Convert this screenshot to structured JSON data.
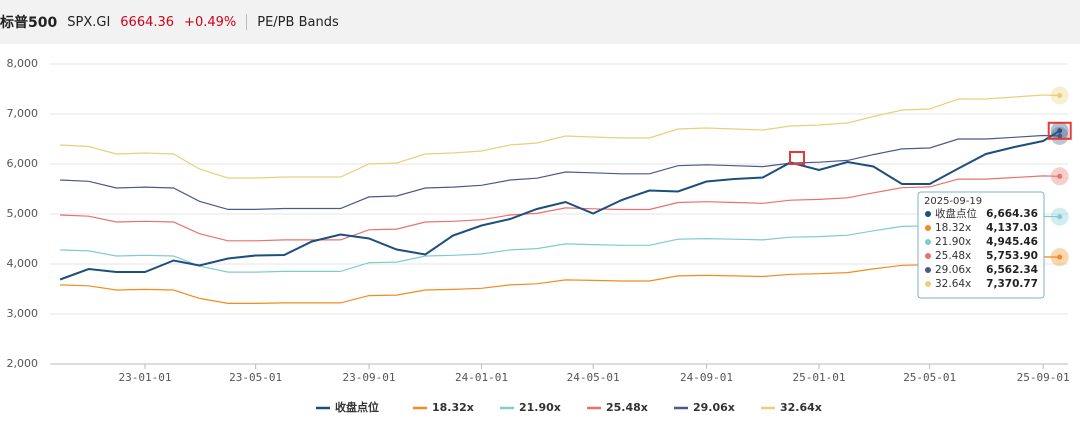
{
  "header": {
    "name": "标普500",
    "code": "SPX.GI",
    "price": "6664.36",
    "change": "+0.49%",
    "tab": "PE/PB Bands"
  },
  "chart_data": {
    "type": "line",
    "x": [
      "2022-10-01",
      "2022-11-01",
      "2022-12-01",
      "2023-01-01",
      "2023-02-01",
      "2023-03-01",
      "2023-04-01",
      "2023-05-01",
      "2023-06-01",
      "2023-07-01",
      "2023-08-01",
      "2023-09-01",
      "2023-10-01",
      "2023-11-01",
      "2023-12-01",
      "2024-01-01",
      "2024-02-01",
      "2024-03-01",
      "2024-04-01",
      "2024-05-01",
      "2024-06-01",
      "2024-07-01",
      "2024-08-01",
      "2024-09-01",
      "2024-10-01",
      "2024-11-01",
      "2024-12-01",
      "2025-01-01",
      "2025-02-01",
      "2025-03-01",
      "2025-04-01",
      "2025-05-01",
      "2025-06-01",
      "2025-07-01",
      "2025-08-01",
      "2025-09-01",
      "2025-09-19"
    ],
    "series": [
      {
        "name": "收盘点位",
        "color": "#1c4f7c",
        "values": [
          3690,
          3900,
          3840,
          3840,
          4070,
          3970,
          4110,
          4170,
          4180,
          4450,
          4590,
          4510,
          4290,
          4190,
          4570,
          4770,
          4900,
          5100,
          5240,
          5010,
          5280,
          5470,
          5450,
          5650,
          5700,
          5730,
          6030,
          5880,
          6040,
          5950,
          5600,
          5600,
          5910,
          6200,
          6340,
          6460,
          6664.36
        ]
      },
      {
        "name": "18.32x",
        "color": "#f28c1e",
        "values": [
          3581,
          3564,
          3480,
          3491,
          3480,
          3312,
          3211,
          3211,
          3222,
          3222,
          3222,
          3368,
          3379,
          3480,
          3491,
          3514,
          3581,
          3604,
          3682,
          3671,
          3660,
          3660,
          3761,
          3772,
          3761,
          3750,
          3794,
          3806,
          3828,
          3901,
          3974,
          3985,
          4098,
          4098,
          4120,
          4142,
          4137.03
        ]
      },
      {
        "name": "21.90x",
        "color": "#7fcbd0",
        "values": [
          4281,
          4261,
          4160,
          4174,
          4160,
          3959,
          3838,
          3838,
          3852,
          3852,
          3852,
          4026,
          4039,
          4160,
          4174,
          4200,
          4281,
          4308,
          4402,
          4388,
          4375,
          4375,
          4496,
          4509,
          4496,
          4482,
          4536,
          4549,
          4576,
          4663,
          4751,
          4764,
          4898,
          4898,
          4925,
          4952,
          4945.46
        ]
      },
      {
        "name": "25.48x",
        "color": "#e8726c",
        "values": [
          4980,
          4957,
          4840,
          4855,
          4840,
          4606,
          4465,
          4465,
          4481,
          4481,
          4481,
          4684,
          4699,
          4840,
          4855,
          4887,
          4980,
          5011,
          5121,
          5105,
          5090,
          5090,
          5230,
          5246,
          5230,
          5214,
          5277,
          5292,
          5324,
          5425,
          5527,
          5542,
          5698,
          5698,
          5730,
          5761,
          5753.9
        ]
      },
      {
        "name": "29.06x",
        "color": "#4a5a8a",
        "values": [
          5680,
          5653,
          5520,
          5538,
          5520,
          5253,
          5093,
          5093,
          5110,
          5110,
          5110,
          5342,
          5360,
          5520,
          5538,
          5573,
          5680,
          5716,
          5840,
          5823,
          5805,
          5805,
          5965,
          5983,
          5965,
          5947,
          6018,
          6036,
          6072,
          6188,
          6303,
          6321,
          6499,
          6499,
          6535,
          6570,
          6562.34
        ]
      },
      {
        "name": "32.64x",
        "color": "#e8d07a",
        "values": [
          6380,
          6350,
          6200,
          6220,
          6200,
          5900,
          5720,
          5720,
          5740,
          5740,
          5740,
          6000,
          6020,
          6200,
          6220,
          6260,
          6380,
          6420,
          6560,
          6540,
          6520,
          6520,
          6700,
          6720,
          6700,
          6680,
          6760,
          6780,
          6820,
          6950,
          7080,
          7100,
          7300,
          7300,
          7340,
          7380,
          7370.77
        ]
      }
    ],
    "xlim": [
      "2022-09-20",
      "2025-09-28"
    ],
    "xticks": [
      {
        "value": "2023-01-01",
        "label": "23-01-01"
      },
      {
        "value": "2023-05-01",
        "label": "23-05-01"
      },
      {
        "value": "2023-09-01",
        "label": "23-09-01"
      },
      {
        "value": "2024-01-01",
        "label": "24-01-01"
      },
      {
        "value": "2024-05-01",
        "label": "24-05-01"
      },
      {
        "value": "2024-09-01",
        "label": "24-09-01"
      },
      {
        "value": "2025-01-01",
        "label": "25-01-01"
      },
      {
        "value": "2025-05-01",
        "label": "25-05-01"
      },
      {
        "value": "2025-09-01",
        "label": "25-09-01"
      }
    ],
    "ylim": [
      2000,
      8000
    ],
    "yticks": [
      {
        "value": 2000,
        "label": "2,000"
      },
      {
        "value": 3000,
        "label": "3,000"
      },
      {
        "value": 4000,
        "label": "4,000"
      },
      {
        "value": 5000,
        "label": "5,000"
      },
      {
        "value": 6000,
        "label": "6,000"
      },
      {
        "value": 7000,
        "label": "7,000"
      },
      {
        "value": 8000,
        "label": "8,000"
      }
    ],
    "grid": true,
    "tooltip": {
      "date": "2025-09-19",
      "value_labels": [
        "6,664.36",
        "4,137.03",
        "4,945.46",
        "5,753.90",
        "6,562.34",
        "7,370.77"
      ]
    }
  }
}
